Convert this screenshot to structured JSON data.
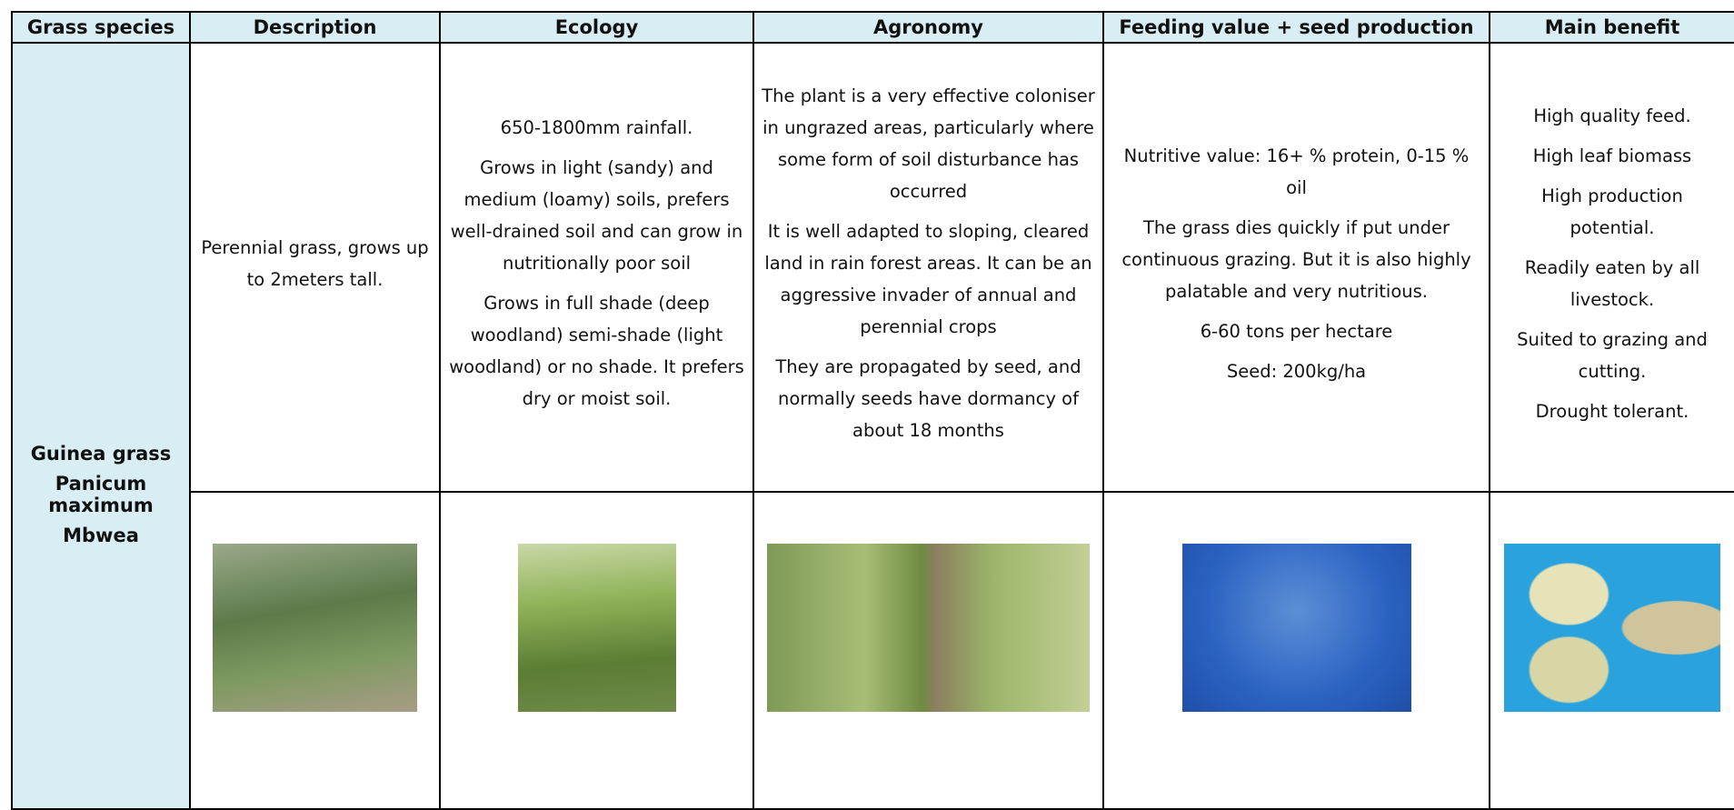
{
  "header": {
    "columns": [
      "Grass species",
      "Description",
      "Ecology",
      "Agronomy",
      "Feeding value + seed production",
      "Main benefit"
    ]
  },
  "row": {
    "species": [
      "Guinea grass",
      "Panicum maximum",
      "Mbwea"
    ],
    "description": [
      "Perennial grass, grows up to 2meters tall."
    ],
    "ecology": [
      "650-1800mm rainfall.",
      "Grows in light (sandy) and medium (loamy) soils, prefers well-drained soil and can grow in nutritionally poor soil",
      "Grows in full shade (deep woodland) semi-shade (light woodland) or no shade. It prefers dry or moist soil."
    ],
    "agronomy": [
      "The plant is a very effective coloniser in ungrazed areas, particularly where some form of soil disturbance has occurred",
      "It is well adapted to sloping, cleared land in rain forest areas. It can be an aggressive invader of annual and perennial crops",
      "They are propagated by seed, and normally seeds have dormancy of about 18 months"
    ],
    "feeding": [
      "Nutritive value: 16+ % protein, 0-15 % oil",
      "The grass dies quickly if put under continuous grazing. But it is also highly palatable and very nutritious.",
      "6-60 tons per hectare",
      "Seed: 200kg/ha"
    ],
    "benefit": [
      "High quality feed.",
      "High leaf biomass",
      "High production potential.",
      "Readily eaten by all livestock.",
      "Suited to grazing and cutting.",
      "Drought tolerant."
    ]
  }
}
